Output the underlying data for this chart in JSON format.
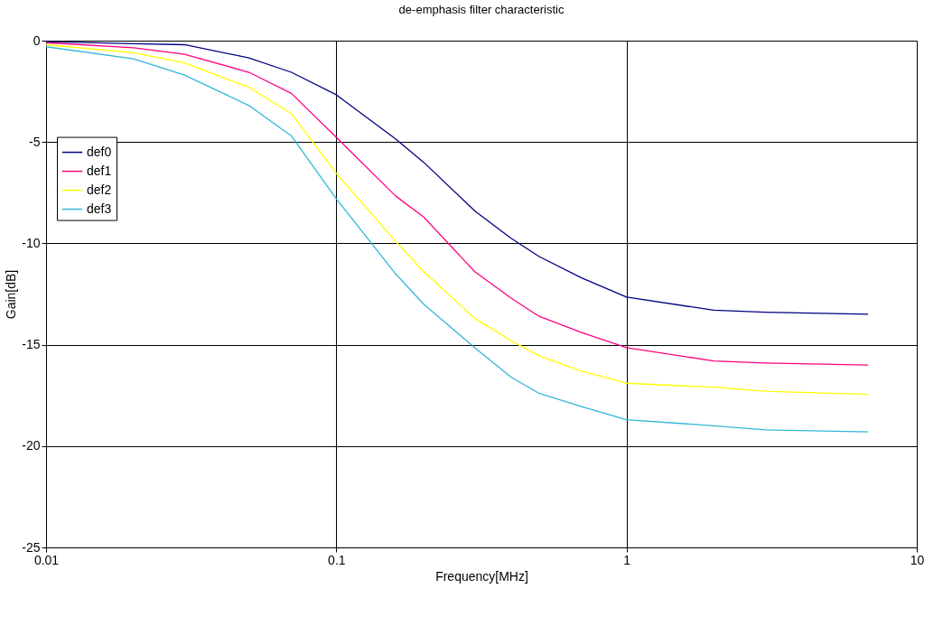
{
  "chart_data": {
    "type": "line",
    "title": "de-emphasis filter characteristic",
    "xlabel": "Frequency[MHz]",
    "ylabel": "Gain[dB]",
    "x": [
      0.01,
      0.02,
      0.03,
      0.05,
      0.07,
      0.1,
      0.16,
      0.2,
      0.3,
      0.4,
      0.5,
      0.7,
      1,
      2,
      3,
      6.8
    ],
    "series": [
      {
        "name": "def0",
        "color": "#000080",
        "values": [
          -0.05,
          -0.15,
          -0.2,
          -0.85,
          -1.56,
          -2.67,
          -4.85,
          -6.0,
          -8.4,
          -9.75,
          -10.65,
          -11.7,
          -12.65,
          -13.3,
          -13.4,
          -13.5
        ]
      },
      {
        "name": "def1",
        "color": "#ff0080",
        "values": [
          -0.1,
          -0.35,
          -0.67,
          -1.56,
          -2.6,
          -4.77,
          -7.66,
          -8.7,
          -11.4,
          -12.7,
          -13.6,
          -14.4,
          -15.15,
          -15.8,
          -15.9,
          -16.0
        ]
      },
      {
        "name": "def2",
        "color": "#ffff00",
        "values": [
          -0.2,
          -0.6,
          -1.1,
          -2.3,
          -3.6,
          -6.55,
          -9.9,
          -11.4,
          -13.7,
          -14.8,
          -15.55,
          -16.3,
          -16.9,
          -17.1,
          -17.3,
          -17.45
        ]
      },
      {
        "name": "def3",
        "color": "#33b5d9",
        "values": [
          -0.3,
          -0.9,
          -1.7,
          -3.2,
          -4.7,
          -7.8,
          -11.5,
          -13.0,
          -15.15,
          -16.6,
          -17.4,
          -18.05,
          -18.7,
          -19.0,
          -19.2,
          -19.3
        ]
      }
    ],
    "log": "x",
    "xlim": [
      0.01,
      10
    ],
    "xticks": [
      0.01,
      0.1,
      1,
      10
    ],
    "ylim": [
      -25,
      0
    ],
    "yticks": [
      -25,
      -20,
      -15,
      -10,
      -5,
      0
    ],
    "grid": true,
    "legend": "left",
    "marker": "none",
    "line_style": "solid"
  }
}
